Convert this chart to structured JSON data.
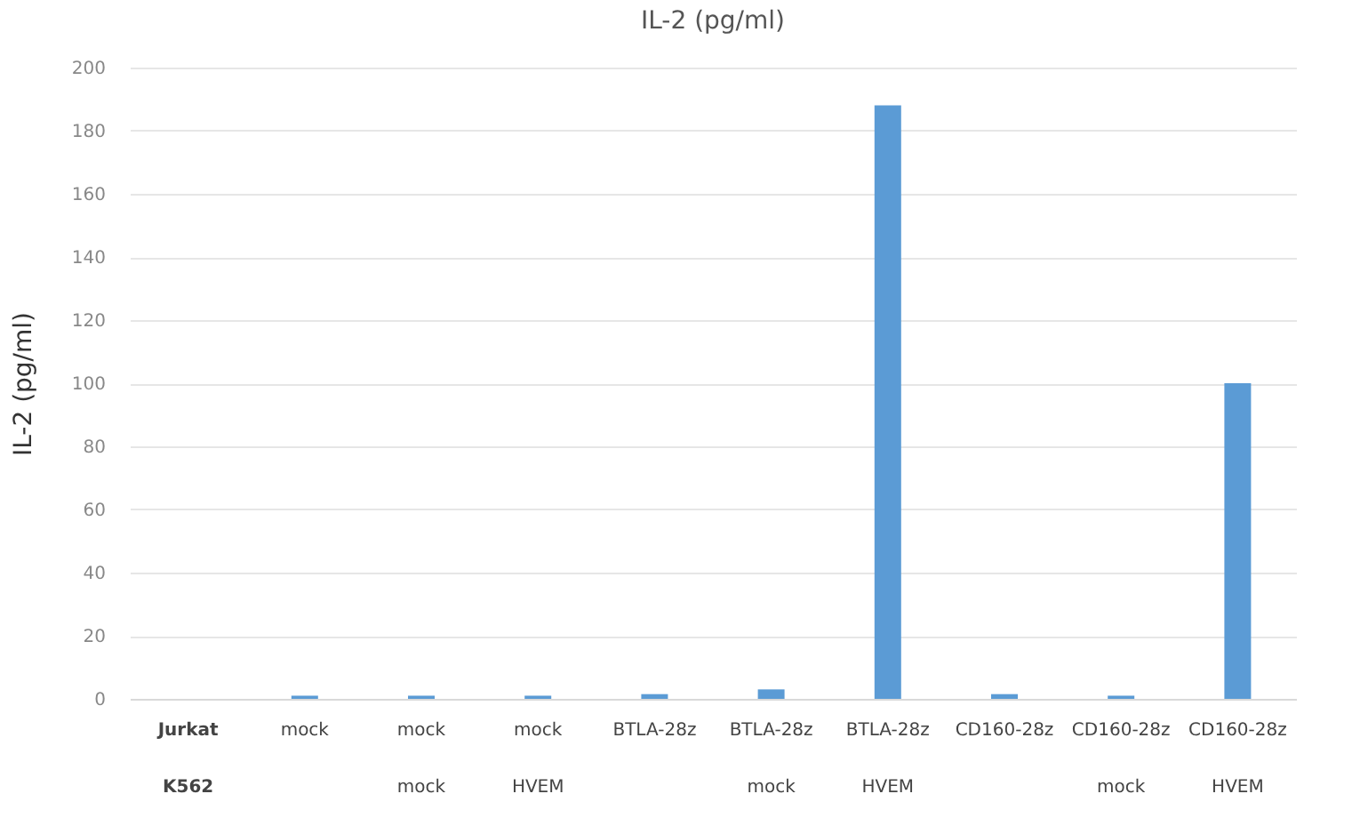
{
  "chart_data": {
    "type": "bar",
    "title": "IL-2 (pg/ml)",
    "ylabel": "IL-2 (pg/ml)",
    "categories": [
      "Jurkat\nK562",
      "mock",
      "mock\nmock",
      "mock\nHVEM",
      "BTLA-28z",
      "BTLA-28z\nmock",
      "BTLA-28z\nHVEM",
      "CD160-28z",
      "CD160-28z\nmock",
      "CD160-28z\nHVEM"
    ],
    "values": [
      null,
      1,
      1,
      1,
      1.5,
      3,
      188,
      1.5,
      1,
      100
    ],
    "color": "#5b9bd5",
    "ylim": [
      0,
      200
    ],
    "yticks": [
      0,
      20,
      40,
      60,
      80,
      100,
      120,
      140,
      160,
      180,
      200
    ],
    "grid": "y"
  }
}
